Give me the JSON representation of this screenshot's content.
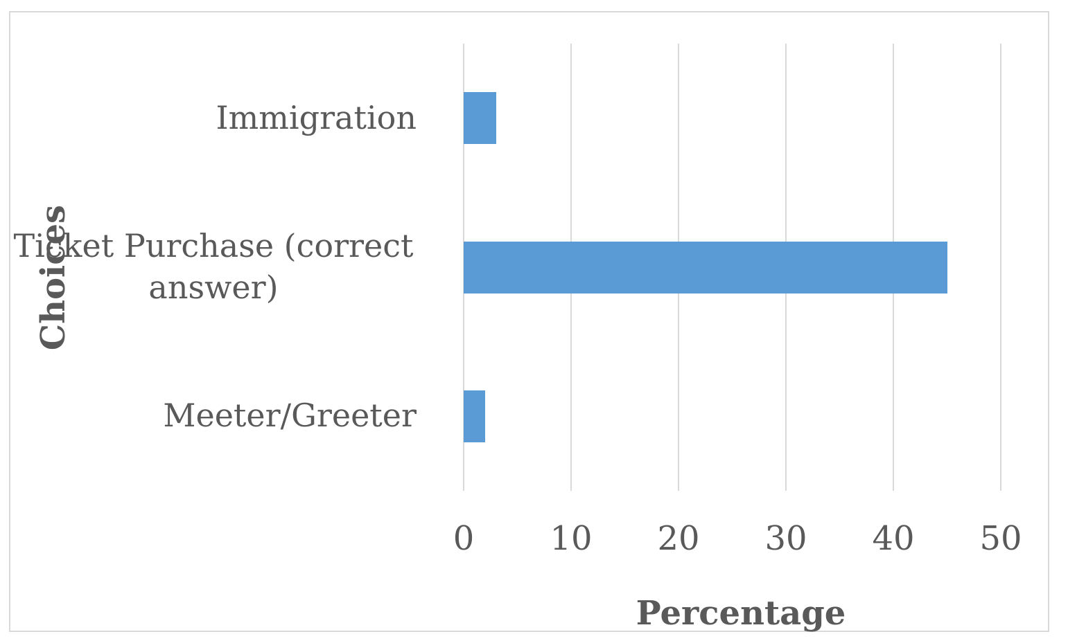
{
  "chart_data": {
    "type": "bar",
    "orientation": "horizontal",
    "title": "",
    "categories": [
      "Immigration",
      "Ticket Purchase (correct answer)",
      "Meeter/Greeter"
    ],
    "values": [
      3,
      45,
      2
    ],
    "series": [
      {
        "name": "Percentage",
        "values": [
          3,
          45,
          2
        ]
      }
    ],
    "xlabel": "Percentage",
    "ylabel": "Choices",
    "xlim": [
      0,
      50
    ],
    "xticks": [
      0,
      10,
      20,
      30,
      40,
      50
    ],
    "grid": true,
    "legend_visible": false,
    "bar_color": "#5B9BD5",
    "gridline_color": "#D9D9D9",
    "axis_line_color": "#D9D9D9",
    "border_color": "#D9D9D9",
    "text_color": "#595959",
    "background_color": "#FFFFFF"
  }
}
